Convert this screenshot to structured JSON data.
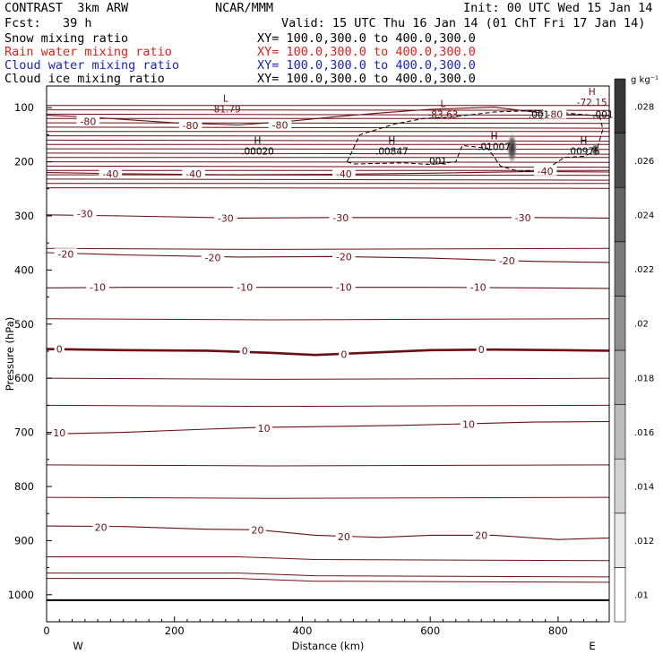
{
  "header": {
    "left1": "CONTRAST  3km ARW",
    "center1": "NCAR/MMM",
    "init": "Init: 00 UTC Wed 15 Jan 14",
    "fcst": "Fcst:   39 h",
    "valid": "Valid: 15 UTC Thu 16 Jan 14 (01 ChT Fri 17 Jan 14)"
  },
  "fields": [
    {
      "name": "Snow mixing ratio",
      "xy": "XY= 100.0,300.0 to 400.0,300.0",
      "color": "#000000"
    },
    {
      "name": "Rain water mixing ratio",
      "xy": "XY= 100.0,300.0 to 400.0,300.0",
      "color": "#e0201c"
    },
    {
      "name": "Cloud water mixing ratio",
      "xy": "XY= 100.0,300.0 to 400.0,300.0",
      "color": "#1a22c8"
    },
    {
      "name": "Cloud ice mixing ratio",
      "xy": "XY= 100.0,300.0 to 400.0,300.0",
      "color": "#000000"
    }
  ],
  "chart_data": {
    "type": "contour",
    "xlabel": "Distance (km)",
    "ylabel": "Pressure (hPa)",
    "xlim": [
      0,
      880
    ],
    "ylim": [
      1050,
      60
    ],
    "x_ticks": [
      0,
      200,
      400,
      600,
      800
    ],
    "y_ticks": [
      100,
      200,
      300,
      400,
      500,
      600,
      700,
      800,
      900,
      1000
    ],
    "x_end_labels": {
      "left": "W",
      "right": "E"
    },
    "colorbar": {
      "unit": "g kg⁻¹",
      "ticks": [
        ".01",
        ".012",
        ".014",
        ".016",
        ".018",
        ".02",
        ".022",
        ".024",
        ".026",
        ".028"
      ]
    },
    "temperature_contours": [
      {
        "value": -80,
        "labels": [
          [
            65,
            125
          ],
          [
            225,
            133
          ],
          [
            365,
            132
          ],
          [
            795,
            112
          ]
        ],
        "pts": [
          [
            0,
            114
          ],
          [
            60,
            117
          ],
          [
            200,
            128
          ],
          [
            300,
            132
          ],
          [
            380,
            125
          ],
          [
            450,
            117
          ],
          [
            520,
            110
          ],
          [
            600,
            103
          ],
          [
            700,
            99
          ],
          [
            790,
            112
          ],
          [
            880,
            115
          ]
        ]
      },
      {
        "value": -40,
        "labels": [
          [
            100,
            222
          ],
          [
            230,
            222
          ],
          [
            465,
            222
          ],
          [
            780,
            217
          ]
        ],
        "pts": [
          [
            0,
            220
          ],
          [
            120,
            222
          ],
          [
            300,
            224
          ],
          [
            450,
            223
          ],
          [
            600,
            221
          ],
          [
            760,
            218
          ],
          [
            880,
            219
          ]
        ]
      },
      {
        "value": -30,
        "labels": [
          [
            60,
            296
          ],
          [
            280,
            304
          ],
          [
            460,
            303
          ],
          [
            745,
            303
          ]
        ],
        "pts": [
          [
            0,
            298
          ],
          [
            120,
            300
          ],
          [
            300,
            304
          ],
          [
            450,
            303
          ],
          [
            600,
            303
          ],
          [
            760,
            303
          ],
          [
            880,
            304
          ]
        ]
      },
      {
        "value": -20,
        "labels": [
          [
            30,
            370
          ],
          [
            260,
            377
          ],
          [
            465,
            375
          ],
          [
            720,
            383
          ]
        ],
        "pts": [
          [
            0,
            368
          ],
          [
            120,
            372
          ],
          [
            300,
            376
          ],
          [
            450,
            375
          ],
          [
            600,
            378
          ],
          [
            760,
            384
          ],
          [
            880,
            386
          ]
        ]
      },
      {
        "value": -10,
        "labels": [
          [
            80,
            432
          ],
          [
            310,
            432
          ],
          [
            465,
            432
          ],
          [
            675,
            432
          ]
        ],
        "pts": [
          [
            0,
            433
          ],
          [
            120,
            432
          ],
          [
            300,
            432
          ],
          [
            450,
            432
          ],
          [
            600,
            432
          ],
          [
            760,
            433
          ],
          [
            880,
            434
          ]
        ]
      },
      {
        "value": 0,
        "labels": [
          [
            20,
            546
          ],
          [
            310,
            549
          ],
          [
            465,
            556
          ],
          [
            680,
            547
          ]
        ],
        "pts": [
          [
            0,
            546
          ],
          [
            120,
            548
          ],
          [
            250,
            549
          ],
          [
            350,
            553
          ],
          [
            420,
            557
          ],
          [
            500,
            553
          ],
          [
            600,
            548
          ],
          [
            700,
            547
          ],
          [
            800,
            548
          ],
          [
            880,
            549
          ]
        ]
      },
      {
        "value": 10,
        "labels": [
          [
            20,
            701
          ],
          [
            340,
            692
          ],
          [
            660,
            685
          ]
        ],
        "pts": [
          [
            0,
            703
          ],
          [
            120,
            700
          ],
          [
            250,
            694
          ],
          [
            330,
            691
          ],
          [
            450,
            689
          ],
          [
            560,
            687
          ],
          [
            660,
            684
          ],
          [
            760,
            681
          ],
          [
            880,
            680
          ]
        ]
      },
      {
        "value": 20,
        "labels": [
          [
            85,
            875
          ],
          [
            330,
            880
          ],
          [
            465,
            893
          ],
          [
            680,
            890
          ]
        ],
        "pts": [
          [
            0,
            873
          ],
          [
            120,
            874
          ],
          [
            250,
            879
          ],
          [
            330,
            880
          ],
          [
            420,
            890
          ],
          [
            520,
            894
          ],
          [
            600,
            890
          ],
          [
            700,
            890
          ],
          [
            800,
            898
          ],
          [
            880,
            895
          ]
        ]
      }
    ],
    "extrema": [
      {
        "type": "L",
        "value": "-81.79",
        "at": [
          280,
          102
        ]
      },
      {
        "type": "L",
        "value": "-83.63",
        "at": [
          620,
          112
        ]
      },
      {
        "type": "H",
        "value": "-72.15",
        "at": [
          853,
          90
        ]
      },
      {
        "type": "H",
        "value": ".00020",
        "at": [
          330,
          180
        ]
      },
      {
        "type": "H",
        "value": ".00847",
        "at": [
          540,
          180
        ]
      },
      {
        "type": "H",
        "value": ".01007",
        "at": [
          700,
          172
        ]
      },
      {
        "type": "H",
        "value": ".00975",
        "at": [
          840,
          180
        ]
      }
    ],
    "ice_contour": {
      "value": ".001",
      "labels": [
        [
          770,
          112
        ],
        [
          610,
          198
        ],
        [
          870,
          112
        ]
      ]
    },
    "shaded_max": {
      "field": "Cloud ice mixing ratio",
      "value": 0.028
    }
  }
}
